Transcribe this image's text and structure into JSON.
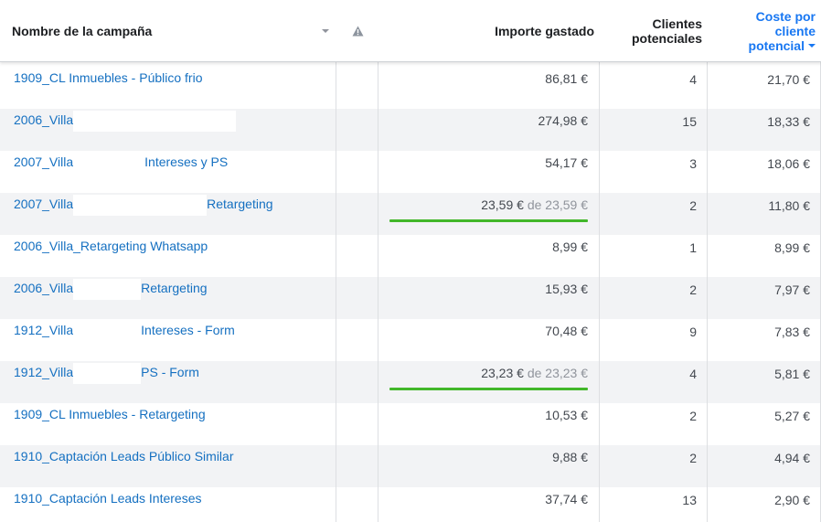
{
  "header": {
    "campaign_name": "Nombre de la campaña",
    "amount_spent": "Importe gastado",
    "leads_line1": "Clientes",
    "leads_line2": "potenciales",
    "cost_line1": "Coste por",
    "cost_line2": "cliente",
    "cost_line3": "potencial",
    "warning_icon": "warning-triangle-icon",
    "sort_icon": "caret-down-icon",
    "accent_color": "#1877f2",
    "budget_bar_color": "#42b72a"
  },
  "rows": [
    {
      "name_start": "1909_CL Inmuebles - Público frio",
      "name_end": "",
      "spent": "86,81 €",
      "budget": "",
      "budget_fill": 0,
      "leads": "4",
      "cost": "21,70 €"
    },
    {
      "name_start": "2006_Villa",
      "name_end": "",
      "spent": "274,98 €",
      "budget": "",
      "budget_fill": 0,
      "leads": "15",
      "cost": "18,33 €"
    },
    {
      "name_start": "2007_Villa",
      "name_end": "Intereses y PS",
      "spent": "54,17 €",
      "budget": "",
      "budget_fill": 0,
      "leads": "3",
      "cost": "18,06 €"
    },
    {
      "name_start": "2007_Villa",
      "name_end": "Retargeting",
      "spent": "23,59 €",
      "budget": " de 23,59 €",
      "budget_fill": 1,
      "leads": "2",
      "cost": "11,80 €"
    },
    {
      "name_start": "2006_Villa_Retargeting Whatsapp",
      "name_end": "",
      "spent": "8,99 €",
      "budget": "",
      "budget_fill": 0,
      "leads": "1",
      "cost": "8,99 €"
    },
    {
      "name_start": "2006_Villa",
      "name_end": "Retargeting",
      "spent": "15,93 €",
      "budget": "",
      "budget_fill": 0,
      "leads": "2",
      "cost": "7,97 €"
    },
    {
      "name_start": "1912_Villa",
      "name_end": "Intereses - Form",
      "spent": "70,48 €",
      "budget": "",
      "budget_fill": 0,
      "leads": "9",
      "cost": "7,83 €"
    },
    {
      "name_start": "1912_Villa",
      "name_end": "PS - Form",
      "spent": "23,23 €",
      "budget": " de 23,23 €",
      "budget_fill": 1,
      "leads": "4",
      "cost": "5,81 €"
    },
    {
      "name_start": "1909_CL Inmuebles - Retargeting",
      "name_end": "",
      "spent": "10,53 €",
      "budget": "",
      "budget_fill": 0,
      "leads": "2",
      "cost": "5,27 €"
    },
    {
      "name_start": "1910_Captación Leads Público Similar",
      "name_end": "",
      "spent": "9,88 €",
      "budget": "",
      "budget_fill": 0,
      "leads": "2",
      "cost": "4,94 €"
    },
    {
      "name_start": "1910_Captación Leads Intereses",
      "name_end": "",
      "spent": "37,74 €",
      "budget": "",
      "budget_fill": 0,
      "leads": "13",
      "cost": "2,90 €"
    }
  ]
}
